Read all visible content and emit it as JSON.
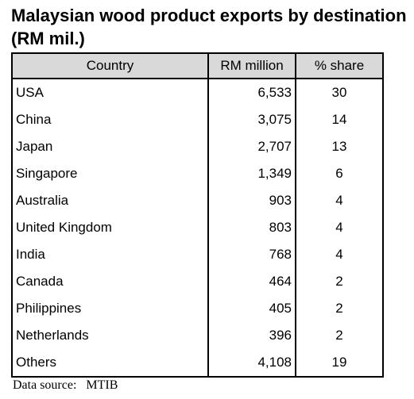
{
  "title": "Malaysian wood product exports by destination (RM mil.)",
  "table": {
    "headers": [
      "Country",
      "RM million",
      "% share"
    ],
    "rows": [
      [
        "USA",
        "6,533",
        "30"
      ],
      [
        "China",
        "3,075",
        "14"
      ],
      [
        "Japan",
        "2,707",
        "13"
      ],
      [
        "Singapore",
        "1,349",
        "6"
      ],
      [
        "Australia",
        "903",
        "4"
      ],
      [
        "United Kingdom",
        "803",
        "4"
      ],
      [
        "India",
        "768",
        "4"
      ],
      [
        "Canada",
        "464",
        "2"
      ],
      [
        "Philippines",
        "405",
        "2"
      ],
      [
        "Netherlands",
        "396",
        "2"
      ],
      [
        "Others",
        "4,108",
        "19"
      ]
    ]
  },
  "source": "Data source:   MTIB",
  "colors": {
    "header_background": "#d9d9d9",
    "border": "#000000"
  }
}
